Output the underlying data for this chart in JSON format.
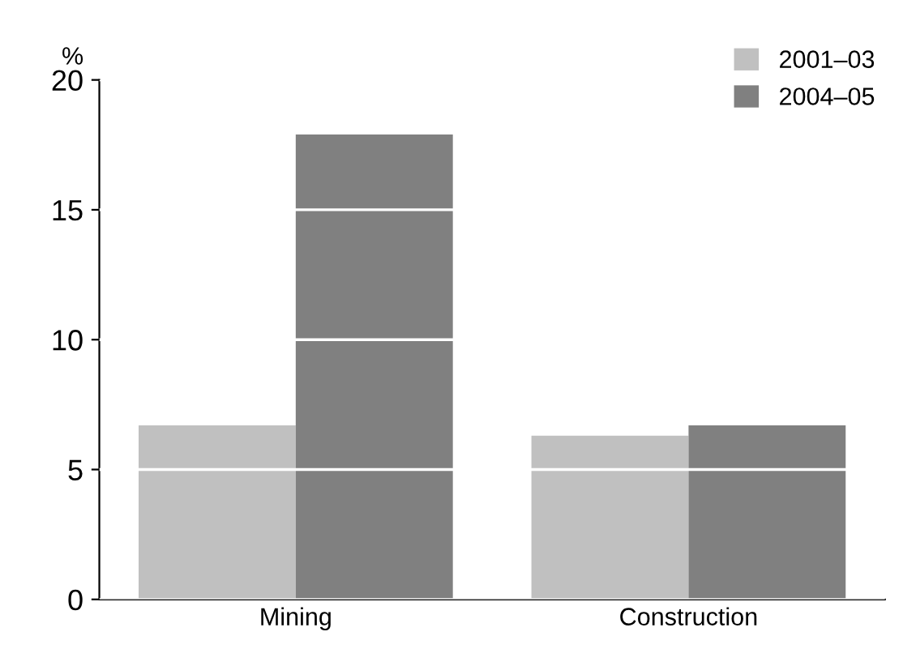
{
  "chart_data": {
    "type": "bar",
    "ylabel": "%",
    "categories": [
      "Mining",
      "Construction"
    ],
    "series": [
      {
        "name": "2001–03",
        "color": "#c0c0c0",
        "values": [
          6.7,
          6.3
        ]
      },
      {
        "name": "2004–05",
        "color": "#808080",
        "values": [
          17.9,
          6.7
        ]
      }
    ],
    "ylim": [
      0,
      20
    ],
    "yticks": [
      0,
      5,
      10,
      15,
      20
    ],
    "grid": "y",
    "legend": "top right"
  }
}
